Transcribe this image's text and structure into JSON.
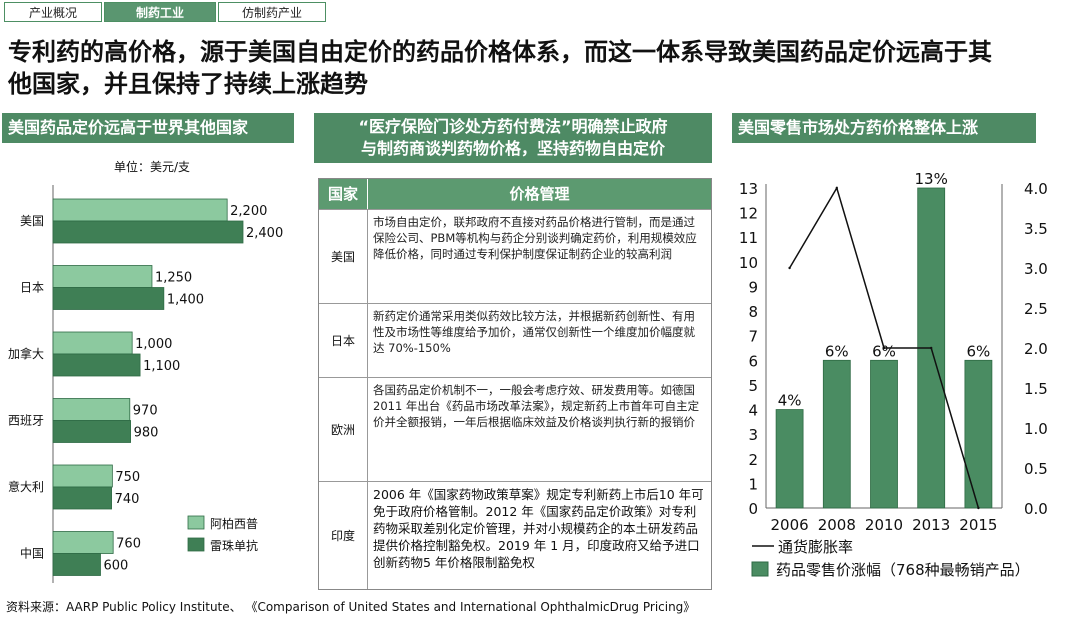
{
  "tabs": [
    "产业概况",
    "制药工业",
    "仿制药产业"
  ],
  "headline": "专利药的高价格，源于美国自由定价的药品价格体系，而这一体系导致美国药品定价远高于其他国家，并且保持了持续上涨趋势",
  "left": {
    "title": "美国药品定价远高于世界其他国家",
    "unit": "单位：美元/支"
  },
  "middle": {
    "title_line1": "“医疗保险门诊处方药付费法”明确禁止政府",
    "title_line2": "与制药商谈判药物价格，坚持药物自由定价",
    "table": {
      "col1": "国家",
      "col2": "价格管理",
      "rows": [
        {
          "country": "美国",
          "text": "市场自由定价，联邦政府不直接对药品价格进行管制，而是通过保险公司、PBM等机构与药企分别谈判确定药价，利用规模效应降低价格，同时通过专利保护制度保证制药企业的较高利润"
        },
        {
          "country": "日本",
          "text": "新药定价通常采用类似药效比较方法，并根据新药创新性、有用性及市场性等维度给予加价，通常仅创新性一个维度加价幅度就达 70%-150%"
        },
        {
          "country": "欧洲",
          "text": "各国药品定价机制不一，一般会考虑疗效、研发费用等。如德国2011 年出台《药品市场改革法案》，规定新药上市首年可自主定价并全额报销，一年后根据临床效益及价格谈判执行新的报销价"
        },
        {
          "country": "印度",
          "text": "2006 年《国家药物政策草案》规定专利新药上市后10 年可免于政府价格管制。2012 年《国家药品定价政策》对专利药物采取差别化定价管理，并对小规模药企的本土研发药品提供价格控制豁免权。2019 年 1 月，印度政府又给予进口创新药物5 年价格限制豁免权"
        }
      ]
    }
  },
  "right": {
    "title": "美国零售市场处方药价格整体上涨"
  },
  "source": "资料来源：AARP Public Policy Institute、 《Comparison of United States and International OphthalmicDrug Pricing》",
  "chart_data": [
    {
      "type": "bar",
      "orientation": "horizontal",
      "categories": [
        "美国",
        "日本",
        "加拿大",
        "西班牙",
        "意大利",
        "中国"
      ],
      "series": [
        {
          "name": "阿柏西普",
          "values": [
            2200,
            1250,
            1000,
            970,
            750,
            760
          ],
          "color": "#8cc99f"
        },
        {
          "name": "雷珠单抗",
          "values": [
            2400,
            1400,
            1100,
            980,
            740,
            600
          ],
          "color": "#3f7f55"
        }
      ],
      "value_labels": [
        [
          "2,200",
          "1,250",
          "1,000",
          "970",
          "750",
          "760"
        ],
        [
          "2,400",
          "1,400",
          "1,100",
          "980",
          "740",
          "600"
        ]
      ],
      "xlim": [
        0,
        2400
      ],
      "legend": "bottom-right",
      "grid": false
    },
    {
      "type": "bar",
      "categories": [
        "2006",
        "2008",
        "2010",
        "2013",
        "2015"
      ],
      "series": [
        {
          "name": "药品零售价涨幅（768种最畅销产品）",
          "values": [
            4,
            6,
            6,
            13,
            6
          ],
          "labels": [
            "4%",
            "6%",
            "6%",
            "13%",
            "6%"
          ],
          "color": "#4a8c62",
          "axis": "left"
        },
        {
          "name": "通货膨胀率",
          "values": [
            3.0,
            4.0,
            2.0,
            2.0,
            0.0
          ],
          "type": "line",
          "color": "#111111",
          "axis": "right"
        }
      ],
      "y_left": {
        "min": 0,
        "max": 13,
        "ticks": [
          "0",
          "1",
          "2",
          "3",
          "4",
          "5",
          "6",
          "7",
          "8",
          "9",
          "10",
          "11",
          "12",
          "13"
        ]
      },
      "y_right": {
        "min": 0,
        "max": 4.0,
        "ticks": [
          "0.0",
          "0.5",
          "1.0",
          "1.5",
          "2.0",
          "2.5",
          "3.0",
          "3.5",
          "4.0"
        ]
      },
      "legend": "bottom",
      "grid": false
    }
  ]
}
